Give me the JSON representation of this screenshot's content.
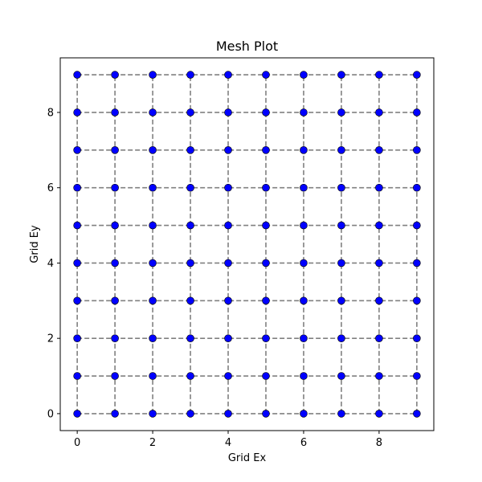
{
  "chart_data": {
    "type": "scatter",
    "title": "Mesh Plot",
    "xlabel": "Grid Ex",
    "ylabel": "Grid Ey",
    "x_grid": [
      0,
      1,
      2,
      3,
      4,
      5,
      6,
      7,
      8,
      9
    ],
    "y_grid": [
      0,
      1,
      2,
      3,
      4,
      5,
      6,
      7,
      8,
      9
    ],
    "xlim": [
      -0.45,
      9.45
    ],
    "ylim": [
      -0.45,
      9.45
    ],
    "xticks": [
      0,
      2,
      4,
      6,
      8
    ],
    "yticks": [
      0,
      2,
      4,
      6,
      8
    ],
    "grid": false,
    "mesh_lines": {
      "style": "dashed",
      "color": "#808080"
    },
    "marker_color": "#0000ff",
    "marker_edge_color": "#000000"
  }
}
